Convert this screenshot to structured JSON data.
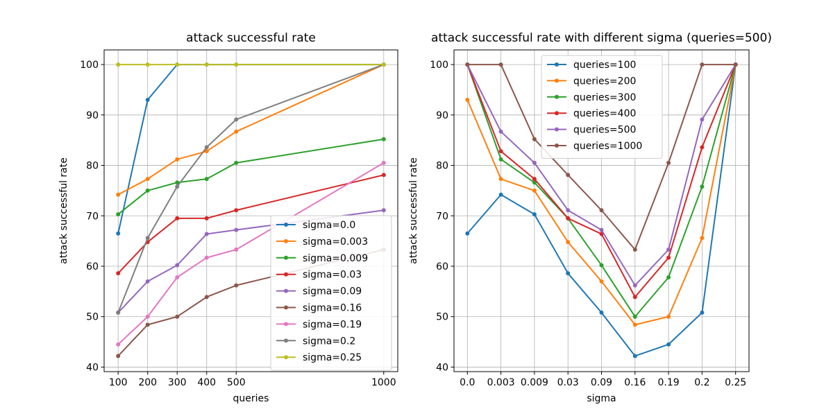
{
  "chart_data": [
    {
      "type": "line",
      "title": "attack successful rate",
      "xlabel": "queries",
      "ylabel": "attack successful rate",
      "x": [
        100,
        200,
        300,
        400,
        500,
        1000
      ],
      "xticks": [
        100,
        200,
        300,
        400,
        500,
        1000
      ],
      "xlim": [
        52.5,
        1047.5
      ],
      "yticks": [
        40,
        50,
        60,
        70,
        80,
        90,
        100
      ],
      "ylim": [
        39.1,
        102.9
      ],
      "grid": true,
      "legend_position": "lower-right",
      "series": [
        {
          "name": "sigma=0.0",
          "color": "#1f77b4",
          "values": [
            66.5,
            93.0,
            100,
            100,
            100,
            100
          ]
        },
        {
          "name": "sigma=0.003",
          "color": "#ff7f0e",
          "values": [
            74.2,
            77.3,
            81.2,
            82.8,
            86.7,
            100
          ]
        },
        {
          "name": "sigma=0.009",
          "color": "#2ca02c",
          "values": [
            70.3,
            75.0,
            76.6,
            77.3,
            80.5,
            85.2
          ]
        },
        {
          "name": "sigma=0.03",
          "color": "#d62728",
          "values": [
            58.6,
            64.8,
            69.5,
            69.5,
            71.1,
            78.1
          ]
        },
        {
          "name": "sigma=0.09",
          "color": "#9467bd",
          "values": [
            50.8,
            57.0,
            60.2,
            66.4,
            67.2,
            71.1
          ]
        },
        {
          "name": "sigma=0.16",
          "color": "#8c564b",
          "values": [
            42.2,
            48.4,
            50.0,
            53.9,
            56.2,
            63.3
          ]
        },
        {
          "name": "sigma=0.19",
          "color": "#e377c2",
          "values": [
            44.5,
            50.0,
            57.8,
            61.7,
            63.3,
            80.5
          ]
        },
        {
          "name": "sigma=0.2",
          "color": "#7f7f7f",
          "values": [
            50.8,
            65.6,
            75.8,
            83.6,
            89.1,
            100
          ]
        },
        {
          "name": "sigma=0.25",
          "color": "#bcbd22",
          "values": [
            100,
            100,
            100,
            100,
            100,
            100
          ]
        }
      ]
    },
    {
      "type": "line",
      "title": "attack successful rate with different sigma (queries=500)",
      "xlabel": "sigma",
      "ylabel": "attack successful rate",
      "categories": [
        "0.0",
        "0.003",
        "0.009",
        "0.03",
        "0.09",
        "0.16",
        "0.19",
        "0.2",
        "0.25"
      ],
      "yticks": [
        40,
        50,
        60,
        70,
        80,
        90,
        100
      ],
      "ylim": [
        39.1,
        102.9
      ],
      "grid": true,
      "legend_position": "top-center",
      "series": [
        {
          "name": "queries=100",
          "color": "#1f77b4",
          "values": [
            66.5,
            74.2,
            70.3,
            58.6,
            50.8,
            42.2,
            44.5,
            50.8,
            100
          ]
        },
        {
          "name": "queries=200",
          "color": "#ff7f0e",
          "values": [
            93.0,
            77.3,
            75.0,
            64.8,
            57.0,
            48.4,
            50.0,
            65.6,
            100
          ]
        },
        {
          "name": "queries=300",
          "color": "#2ca02c",
          "values": [
            100,
            81.2,
            76.6,
            69.5,
            60.2,
            50.0,
            57.8,
            75.8,
            100
          ]
        },
        {
          "name": "queries=400",
          "color": "#d62728",
          "values": [
            100,
            82.8,
            77.3,
            69.5,
            66.4,
            53.9,
            61.7,
            83.6,
            100
          ]
        },
        {
          "name": "queries=500",
          "color": "#9467bd",
          "values": [
            100,
            86.7,
            80.5,
            71.1,
            67.2,
            56.2,
            63.3,
            89.1,
            100
          ]
        },
        {
          "name": "queries=1000",
          "color": "#8c564b",
          "values": [
            100,
            100,
            85.2,
            78.1,
            71.1,
            63.3,
            80.5,
            100,
            100
          ]
        }
      ]
    }
  ]
}
